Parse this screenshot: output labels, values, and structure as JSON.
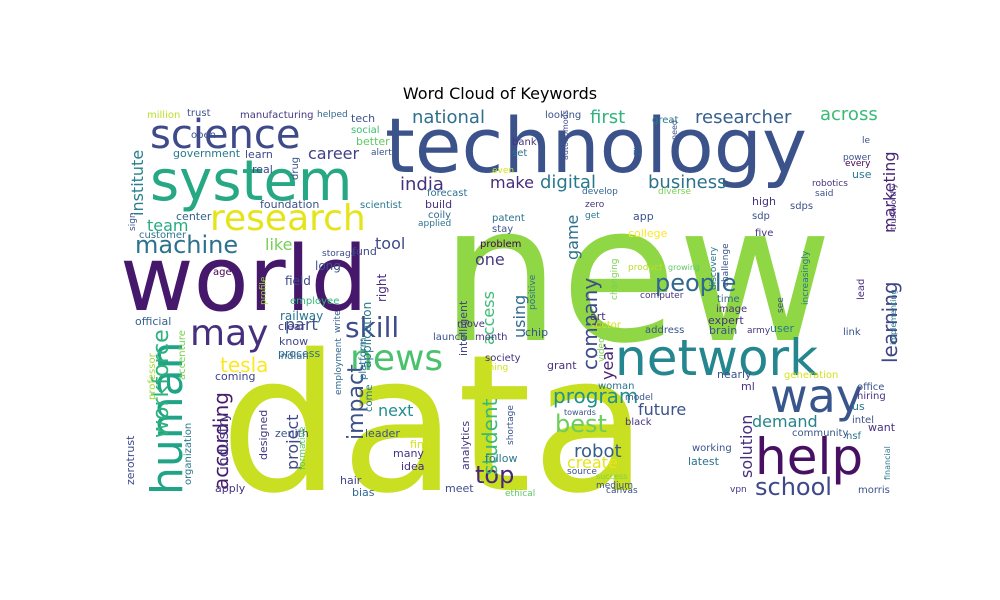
{
  "chart_data": {
    "type": "word-cloud",
    "title": "Word Cloud of Keywords",
    "palette": "viridis",
    "words": [
      {
        "text": "data",
        "color": "#c8df22"
      },
      {
        "text": "new",
        "color": "#8fd744"
      },
      {
        "text": "technology",
        "color": "#3b528b"
      },
      {
        "text": "world",
        "color": "#45186b"
      },
      {
        "text": "system",
        "color": "#27a884"
      },
      {
        "text": "network",
        "color": "#24868e"
      },
      {
        "text": "help",
        "color": "#471063"
      },
      {
        "text": "science",
        "color": "#3e4a89"
      },
      {
        "text": "way",
        "color": "#39568c"
      },
      {
        "text": "human",
        "color": "#20a386"
      },
      {
        "text": "research",
        "color": "#e5e419"
      },
      {
        "text": "news",
        "color": "#4ac16d"
      },
      {
        "text": "may",
        "color": "#46307e"
      },
      {
        "text": "skill",
        "color": "#3e4c8a"
      },
      {
        "text": "machine",
        "color": "#2c728e"
      },
      {
        "text": "people",
        "color": "#31688e"
      },
      {
        "text": "school",
        "color": "#3f4889"
      },
      {
        "text": "top",
        "color": "#482878"
      },
      {
        "text": "workforce",
        "color": "#2db27d"
      },
      {
        "text": "impact",
        "color": "#3b518b"
      },
      {
        "text": "according",
        "color": "#481b6d"
      },
      {
        "text": "best",
        "color": "#6ccd5a"
      },
      {
        "text": "program",
        "color": "#21918c"
      },
      {
        "text": "company",
        "color": "#3e4c8a"
      },
      {
        "text": "student",
        "color": "#38b977"
      },
      {
        "text": "learning",
        "color": "#404588"
      },
      {
        "text": "tesla",
        "color": "#fde725"
      },
      {
        "text": "india",
        "color": "#46327e"
      },
      {
        "text": "digital",
        "color": "#2a788e"
      },
      {
        "text": "business",
        "color": "#2c728e"
      },
      {
        "text": "national",
        "color": "#2e6e8e"
      },
      {
        "text": "researcher",
        "color": "#355f8d"
      },
      {
        "text": "across",
        "color": "#3aba76"
      },
      {
        "text": "first",
        "color": "#2fb47c"
      },
      {
        "text": "marketing",
        "color": "#482475"
      },
      {
        "text": "career",
        "color": "#424086"
      },
      {
        "text": "like",
        "color": "#75d054"
      },
      {
        "text": "team",
        "color": "#25ab82"
      },
      {
        "text": "institute",
        "color": "#277f8e"
      },
      {
        "text": "tool",
        "color": "#3e4989"
      },
      {
        "text": "part",
        "color": "#3b528b"
      },
      {
        "text": "make",
        "color": "#472c7a"
      },
      {
        "text": "one",
        "color": "#453781"
      },
      {
        "text": "using",
        "color": "#2f6c8e"
      },
      {
        "text": "access",
        "color": "#3dbc74"
      },
      {
        "text": "game",
        "color": "#2c728e"
      },
      {
        "text": "year",
        "color": "#482475"
      },
      {
        "text": "future",
        "color": "#3b528b"
      },
      {
        "text": "robot",
        "color": "#355e8d"
      },
      {
        "text": "demand",
        "color": "#25838e"
      },
      {
        "text": "solution",
        "color": "#472d7b"
      },
      {
        "text": "create",
        "color": "#e7e419"
      },
      {
        "text": "next",
        "color": "#218f8d"
      },
      {
        "text": "project",
        "color": "#3f4788"
      },
      {
        "text": "industry",
        "color": "#453882"
      },
      {
        "text": "application",
        "color": "#2a788e"
      },
      {
        "text": "right",
        "color": "#472a7a"
      },
      {
        "text": "intelligent",
        "color": "#414487"
      },
      {
        "text": "field",
        "color": "#3f4889"
      },
      {
        "text": "long",
        "color": "#3b528b"
      },
      {
        "text": "railway",
        "color": "#2c728e"
      },
      {
        "text": "clear",
        "color": "#453581"
      },
      {
        "text": "know",
        "color": "#3f4889"
      },
      {
        "text": "process",
        "color": "#2c728e"
      },
      {
        "text": "indian",
        "color": "#31688e"
      },
      {
        "text": "coming",
        "color": "#414487"
      },
      {
        "text": "official",
        "color": "#33638d"
      },
      {
        "text": "accenture",
        "color": "#7ad151"
      },
      {
        "text": "professor",
        "color": "#a2da37"
      },
      {
        "text": "zerotrust",
        "color": "#3e4a89"
      },
      {
        "text": "organization",
        "color": "#2a788e"
      },
      {
        "text": "designed",
        "color": "#453781"
      },
      {
        "text": "zenith",
        "color": "#3b528b"
      },
      {
        "text": "formative",
        "color": "#5ec962"
      },
      {
        "text": "apply",
        "color": "#46327e"
      },
      {
        "text": "hair",
        "color": "#414487"
      },
      {
        "text": "bias",
        "color": "#31688e"
      },
      {
        "text": "idea",
        "color": "#472c7a"
      },
      {
        "text": "many",
        "color": "#46337f"
      },
      {
        "text": "find",
        "color": "#d2e21b"
      },
      {
        "text": "meet",
        "color": "#3e4c8a"
      },
      {
        "text": "ethical",
        "color": "#5ec962"
      },
      {
        "text": "follow",
        "color": "#2a788e"
      },
      {
        "text": "shortage",
        "color": "#3b528b"
      },
      {
        "text": "analytics",
        "color": "#46337f"
      },
      {
        "text": "leader",
        "color": "#3b528b"
      },
      {
        "text": "come",
        "color": "#2a788e"
      },
      {
        "text": "platform",
        "color": "#2c728e"
      },
      {
        "text": "employment",
        "color": "#31688e"
      },
      {
        "text": "write",
        "color": "#355f8d"
      },
      {
        "text": "storage",
        "color": "#3e4989"
      },
      {
        "text": "fund",
        "color": "#3f4788"
      },
      {
        "text": "profile",
        "color": "#a0da39"
      },
      {
        "text": "employee",
        "color": "#34b679"
      },
      {
        "text": "age",
        "color": "#440154"
      },
      {
        "text": "customer",
        "color": "#2c728e"
      },
      {
        "text": "sign",
        "color": "#3b528b"
      },
      {
        "text": "center",
        "color": "#33638d"
      },
      {
        "text": "foundation",
        "color": "#3b528b"
      },
      {
        "text": "scientist",
        "color": "#2a788e"
      },
      {
        "text": "build",
        "color": "#46327e"
      },
      {
        "text": "applied",
        "color": "#2c728e"
      },
      {
        "text": "coily",
        "color": "#31688e"
      },
      {
        "text": "forecast",
        "color": "#2c728e"
      },
      {
        "text": "real",
        "color": "#3f4788"
      },
      {
        "text": "drug",
        "color": "#3b528b"
      },
      {
        "text": "government",
        "color": "#2a788e"
      },
      {
        "text": "learn",
        "color": "#3e4a89"
      },
      {
        "text": "better",
        "color": "#5ec962"
      },
      {
        "text": "social",
        "color": "#3dbc74"
      },
      {
        "text": "alert",
        "color": "#3b528b"
      },
      {
        "text": "tech",
        "color": "#3b528b"
      },
      {
        "text": "manufacturing",
        "color": "#453781"
      },
      {
        "text": "helped",
        "color": "#31688e"
      },
      {
        "text": "trust",
        "color": "#3b528b"
      },
      {
        "text": "million",
        "color": "#bade28"
      },
      {
        "text": "open",
        "color": "#3b528b"
      },
      {
        "text": "bank",
        "color": "#46337f"
      },
      {
        "text": "set",
        "color": "#2c728e"
      },
      {
        "text": "even",
        "color": "#d2e21b"
      },
      {
        "text": "looking",
        "color": "#3b528b"
      },
      {
        "text": "autonomous",
        "color": "#3e4c8a"
      },
      {
        "text": "iu",
        "color": "#31688e"
      },
      {
        "text": "great",
        "color": "#2a788e"
      },
      {
        "text": "need",
        "color": "#3b528b"
      },
      {
        "text": "develop",
        "color": "#31688e"
      },
      {
        "text": "diverse",
        "color": "#7ad151"
      },
      {
        "text": "zero",
        "color": "#46337f"
      },
      {
        "text": "get",
        "color": "#2a788e"
      },
      {
        "text": "app",
        "color": "#3b528b"
      },
      {
        "text": "college",
        "color": "#fde725"
      },
      {
        "text": "patent",
        "color": "#2c728e"
      },
      {
        "text": "stay",
        "color": "#3b528b"
      },
      {
        "text": "problem",
        "color": "#440154"
      },
      {
        "text": "positive",
        "color": "#2c728e"
      },
      {
        "text": "changing",
        "color": "#7ad151"
      },
      {
        "text": "product",
        "color": "#bade28"
      },
      {
        "text": "growing",
        "color": "#5ec962"
      },
      {
        "text": "discovery",
        "color": "#2a788e"
      },
      {
        "text": "challenge",
        "color": "#3b528b"
      },
      {
        "text": "computer",
        "color": "#46337f"
      },
      {
        "text": "time",
        "color": "#31688e"
      },
      {
        "text": "image",
        "color": "#46327e"
      },
      {
        "text": "expert",
        "color": "#46327e"
      },
      {
        "text": "brain",
        "color": "#3b528b"
      },
      {
        "text": "army",
        "color": "#46337f"
      },
      {
        "text": "user",
        "color": "#2a788e"
      },
      {
        "text": "address",
        "color": "#3b528b"
      },
      {
        "text": "art",
        "color": "#46327e"
      },
      {
        "text": "sector",
        "color": "#d2e21b"
      },
      {
        "text": "chip",
        "color": "#3b528b"
      },
      {
        "text": "move",
        "color": "#46337f"
      },
      {
        "text": "month",
        "color": "#46327e"
      },
      {
        "text": "launch",
        "color": "#3b528b"
      },
      {
        "text": "society",
        "color": "#46327e"
      },
      {
        "text": "video",
        "color": "#7ad151"
      },
      {
        "text": "grant",
        "color": "#46327e"
      },
      {
        "text": "thing",
        "color": "#d2e21b"
      },
      {
        "text": "woman",
        "color": "#2c728e"
      },
      {
        "text": "towards",
        "color": "#3b528b"
      },
      {
        "text": "black",
        "color": "#46337f"
      },
      {
        "text": "model",
        "color": "#3b528b"
      },
      {
        "text": "working",
        "color": "#3b528b"
      },
      {
        "text": "latest",
        "color": "#2c728e"
      },
      {
        "text": "source",
        "color": "#3b528b"
      },
      {
        "text": "success",
        "color": "#7ad151"
      },
      {
        "text": "medium",
        "color": "#3b528b"
      },
      {
        "text": "canvas",
        "color": "#3b528b"
      },
      {
        "text": "vpn",
        "color": "#46337f"
      },
      {
        "text": "nearly",
        "color": "#3b528b"
      },
      {
        "text": "ml",
        "color": "#46327e"
      },
      {
        "text": "generation",
        "color": "#d2e21b"
      },
      {
        "text": "community",
        "color": "#3b528b"
      },
      {
        "text": "nsf",
        "color": "#2a788e"
      },
      {
        "text": "intel",
        "color": "#3b528b"
      },
      {
        "text": "want",
        "color": "#46337f"
      },
      {
        "text": "us",
        "color": "#2a788e"
      },
      {
        "text": "hiring",
        "color": "#46337f"
      },
      {
        "text": "office",
        "color": "#3b528b"
      },
      {
        "text": "financial",
        "color": "#2a788e"
      },
      {
        "text": "every",
        "color": "#440154"
      },
      {
        "text": "morris",
        "color": "#3b528b"
      },
      {
        "text": "high",
        "color": "#46327e"
      },
      {
        "text": "sdps",
        "color": "#3b528b"
      },
      {
        "text": "sdp",
        "color": "#3b528b"
      },
      {
        "text": "five",
        "color": "#46337f"
      },
      {
        "text": "increasingly",
        "color": "#2a788e"
      },
      {
        "text": "lead",
        "color": "#46327e"
      },
      {
        "text": "see",
        "color": "#3b528b"
      },
      {
        "text": "implementing",
        "color": "#2a788e"
      },
      {
        "text": "link",
        "color": "#3b528b"
      },
      {
        "text": "robotics",
        "color": "#46327e"
      },
      {
        "text": "said",
        "color": "#3b528b"
      },
      {
        "text": "use",
        "color": "#2a788e"
      },
      {
        "text": "power",
        "color": "#3b528b"
      },
      {
        "text": "trustworthy",
        "color": "#46327e"
      },
      {
        "text": "le",
        "color": "#3b528b"
      }
    ]
  }
}
